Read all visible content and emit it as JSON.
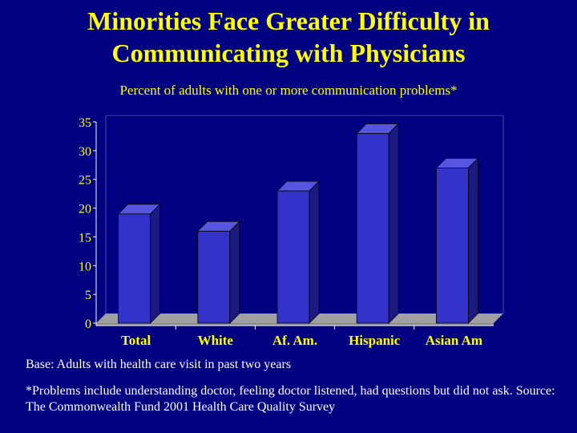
{
  "slide": {
    "title_line1": "Minorities Face Greater Difficulty in",
    "title_line2": "Communicating with Physicians",
    "base_note": "Base:  Adults with health care visit in past two years",
    "footnote": "*Problems include understanding doctor, feeling doctor listened, had questions but did not ask.  Source:  The Commonwealth Fund 2001 Health Care Quality Survey"
  },
  "chart_data": {
    "type": "bar",
    "title": "Percent of adults with one or more communication problems*",
    "xlabel": "",
    "ylabel": "",
    "categories": [
      "Total",
      "White",
      "Af. Am.",
      "Hispanic",
      "Asian Am"
    ],
    "values": [
      19,
      16,
      23,
      33,
      27
    ],
    "ylim": [
      0,
      35
    ],
    "yticks": [
      0,
      5,
      10,
      15,
      20,
      25,
      30,
      35
    ],
    "grid": false,
    "legend": "none",
    "colors": {
      "bar_front": "#3333CC",
      "bar_side": "#1A1A80",
      "bar_top": "#5555E0",
      "floor": "#888888",
      "floor_top": "#A0A0A0",
      "axis": "#FFFFFF",
      "tick_label": "#FFFF00"
    }
  }
}
